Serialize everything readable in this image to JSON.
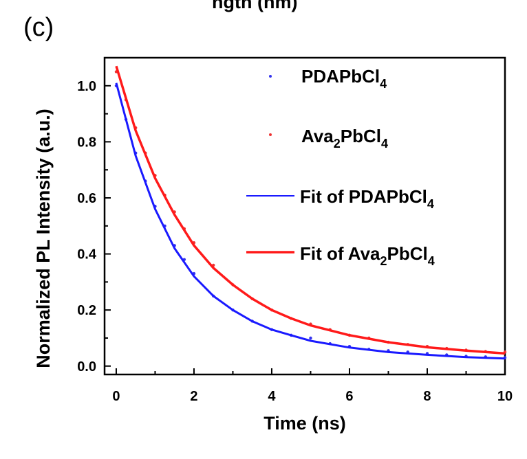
{
  "panel_label": "(c)",
  "top_cut_text": "ngth (nm)",
  "chart_data": {
    "type": "scatter",
    "xlabel": "Time (ns)",
    "ylabel": "Normalized PL Intensity (a.u.)",
    "xlim": [
      -0.3,
      10
    ],
    "ylim": [
      -0.03,
      1.1
    ],
    "x_ticks": [
      0,
      2,
      4,
      6,
      8,
      10
    ],
    "x_tick_labels": [
      "0",
      "2",
      "4",
      "6",
      "8",
      "10"
    ],
    "y_ticks": [
      0.0,
      0.2,
      0.4,
      0.6,
      0.8,
      1.0
    ],
    "y_tick_labels": [
      "0.0",
      "0.2",
      "0.4",
      "0.6",
      "0.8",
      "1.0"
    ],
    "grid": false,
    "legend_position": "top-right",
    "series": [
      {
        "name": "PDAPbCl4",
        "name_base": "PDAPbCl",
        "name_sub": "4",
        "kind": "scatter",
        "color": "#3333ee",
        "x": [
          0.0,
          0.25,
          0.5,
          0.75,
          1.0,
          1.25,
          1.5,
          1.75,
          2.0,
          2.5,
          3.0,
          3.5,
          4.0,
          4.5,
          5.0,
          5.5,
          6.0,
          6.5,
          7.0,
          7.5,
          8.0,
          8.5,
          9.0,
          9.5,
          10.0
        ],
        "y": [
          1.0,
          0.88,
          0.76,
          0.66,
          0.57,
          0.5,
          0.43,
          0.38,
          0.33,
          0.25,
          0.2,
          0.16,
          0.13,
          0.11,
          0.1,
          0.08,
          0.07,
          0.06,
          0.055,
          0.05,
          0.045,
          0.04,
          0.035,
          0.033,
          0.03
        ]
      },
      {
        "name": "Ava2PbCl4",
        "name_base": "Ava",
        "name_sub1": "2",
        "name_mid": "PbCl",
        "name_sub2": "4",
        "kind": "scatter",
        "color": "#ee3333",
        "x": [
          0.0,
          0.25,
          0.5,
          0.75,
          1.0,
          1.25,
          1.5,
          1.75,
          2.0,
          2.5,
          3.0,
          3.5,
          4.0,
          4.5,
          5.0,
          5.5,
          6.0,
          6.5,
          7.0,
          7.5,
          8.0,
          8.5,
          9.0,
          9.5,
          10.0
        ],
        "y": [
          1.05,
          0.95,
          0.85,
          0.76,
          0.68,
          0.61,
          0.55,
          0.49,
          0.44,
          0.36,
          0.29,
          0.24,
          0.2,
          0.17,
          0.15,
          0.13,
          0.11,
          0.1,
          0.085,
          0.077,
          0.07,
          0.063,
          0.057,
          0.052,
          0.05
        ]
      },
      {
        "name": "Fit of PDAPbCl4",
        "name_base": "Fit of PDAPbCl",
        "name_sub": "4",
        "kind": "line",
        "color": "#1a1aff",
        "x": [
          0.0,
          0.5,
          1.0,
          1.5,
          2.0,
          2.5,
          3.0,
          3.5,
          4.0,
          4.5,
          5.0,
          6.0,
          7.0,
          8.0,
          9.0,
          10.0
        ],
        "y": [
          1.01,
          0.75,
          0.56,
          0.42,
          0.32,
          0.25,
          0.2,
          0.16,
          0.13,
          0.11,
          0.09,
          0.066,
          0.05,
          0.04,
          0.032,
          0.027
        ]
      },
      {
        "name": "Fit of Ava2PbCl4",
        "name_base": "Fit of Ava",
        "name_sub1": "2",
        "name_mid": "PbCl",
        "name_sub2": "4",
        "kind": "line",
        "color": "#ff1a1a",
        "x": [
          0.0,
          0.5,
          1.0,
          1.5,
          2.0,
          2.5,
          3.0,
          3.5,
          4.0,
          4.5,
          5.0,
          6.0,
          7.0,
          8.0,
          9.0,
          10.0
        ],
        "y": [
          1.07,
          0.84,
          0.67,
          0.54,
          0.43,
          0.35,
          0.29,
          0.24,
          0.2,
          0.17,
          0.145,
          0.11,
          0.085,
          0.067,
          0.055,
          0.045
        ]
      }
    ]
  }
}
